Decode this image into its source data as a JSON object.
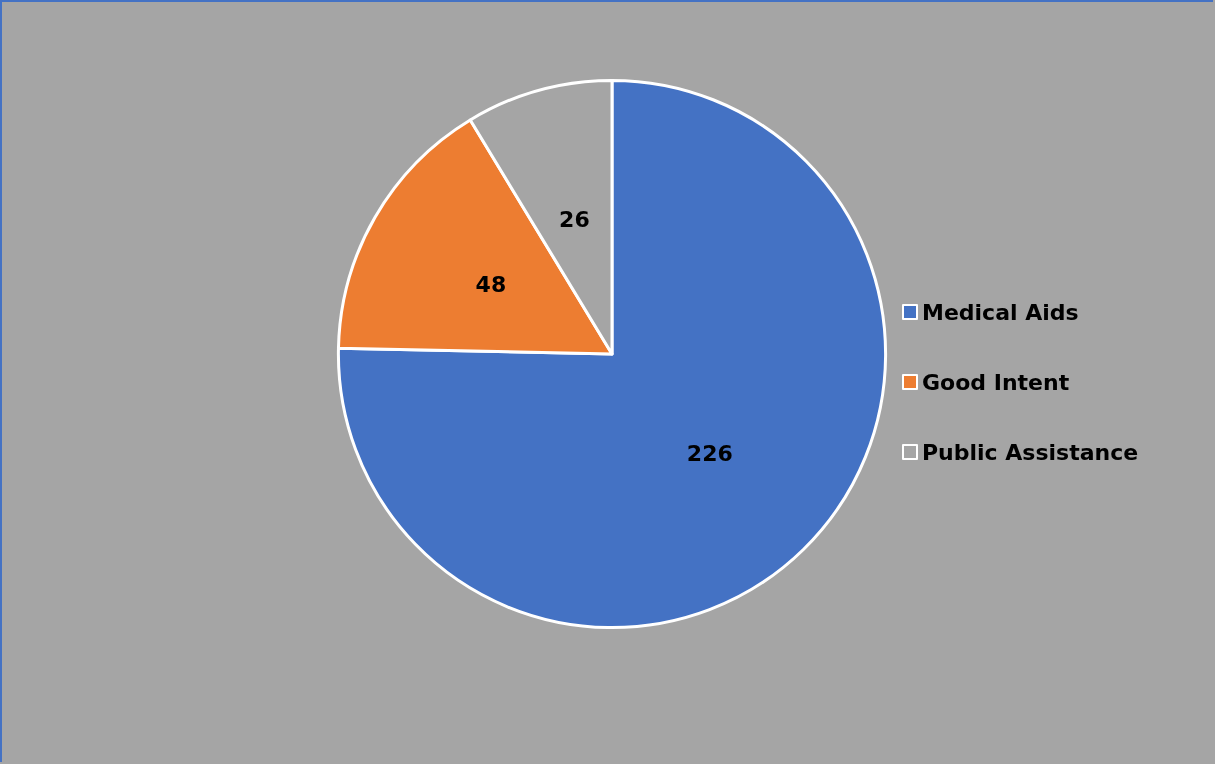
{
  "chart_data": {
    "type": "pie",
    "categories": [
      "Medical Aids",
      "Good Intent",
      "Public Assistance"
    ],
    "values": [
      226,
      48,
      26
    ],
    "colors": [
      "#4472c4",
      "#ed7d31",
      "#a5a5a5"
    ],
    "data_labels": true,
    "legend": "right"
  }
}
